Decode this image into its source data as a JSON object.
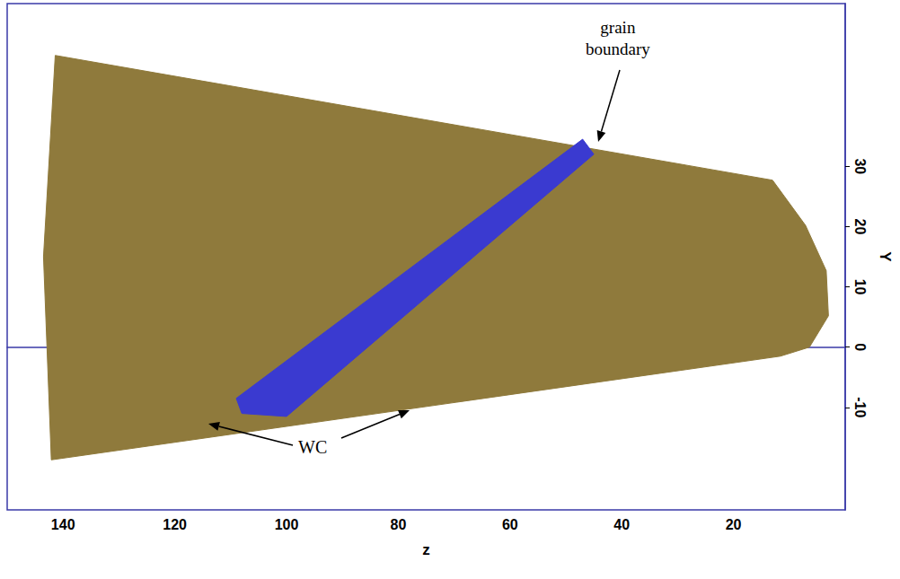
{
  "chart_data": {
    "type": "area",
    "xlabel": "z",
    "ylabel": "Y",
    "xlim": [
      150,
      0
    ],
    "ylim": [
      -27,
      57
    ],
    "xticks": [
      140,
      120,
      100,
      80,
      60,
      40,
      20
    ],
    "yticks": [
      -10,
      0,
      10,
      20,
      30
    ],
    "grid": false,
    "series": [
      {
        "name": "WC",
        "color": "#8f7a3c",
        "points": [
          [
            141.4,
            48.4
          ],
          [
            13,
            27.7
          ],
          [
            7.1,
            20.2
          ],
          [
            3.4,
            12.7
          ],
          [
            3,
            5.2
          ],
          [
            6.4,
            0
          ],
          [
            11.6,
            -1.5
          ],
          [
            142.1,
            -18.7
          ],
          [
            143.5,
            15
          ]
        ]
      },
      {
        "name": "grain boundary",
        "color": "#3a3ad0",
        "points": [
          [
            108,
            -11
          ],
          [
            100,
            -11.5
          ],
          [
            45,
            32
          ],
          [
            47,
            34.5
          ],
          [
            109,
            -8.5
          ]
        ]
      }
    ],
    "annotations": [
      "grain boundary",
      "WC"
    ]
  }
}
